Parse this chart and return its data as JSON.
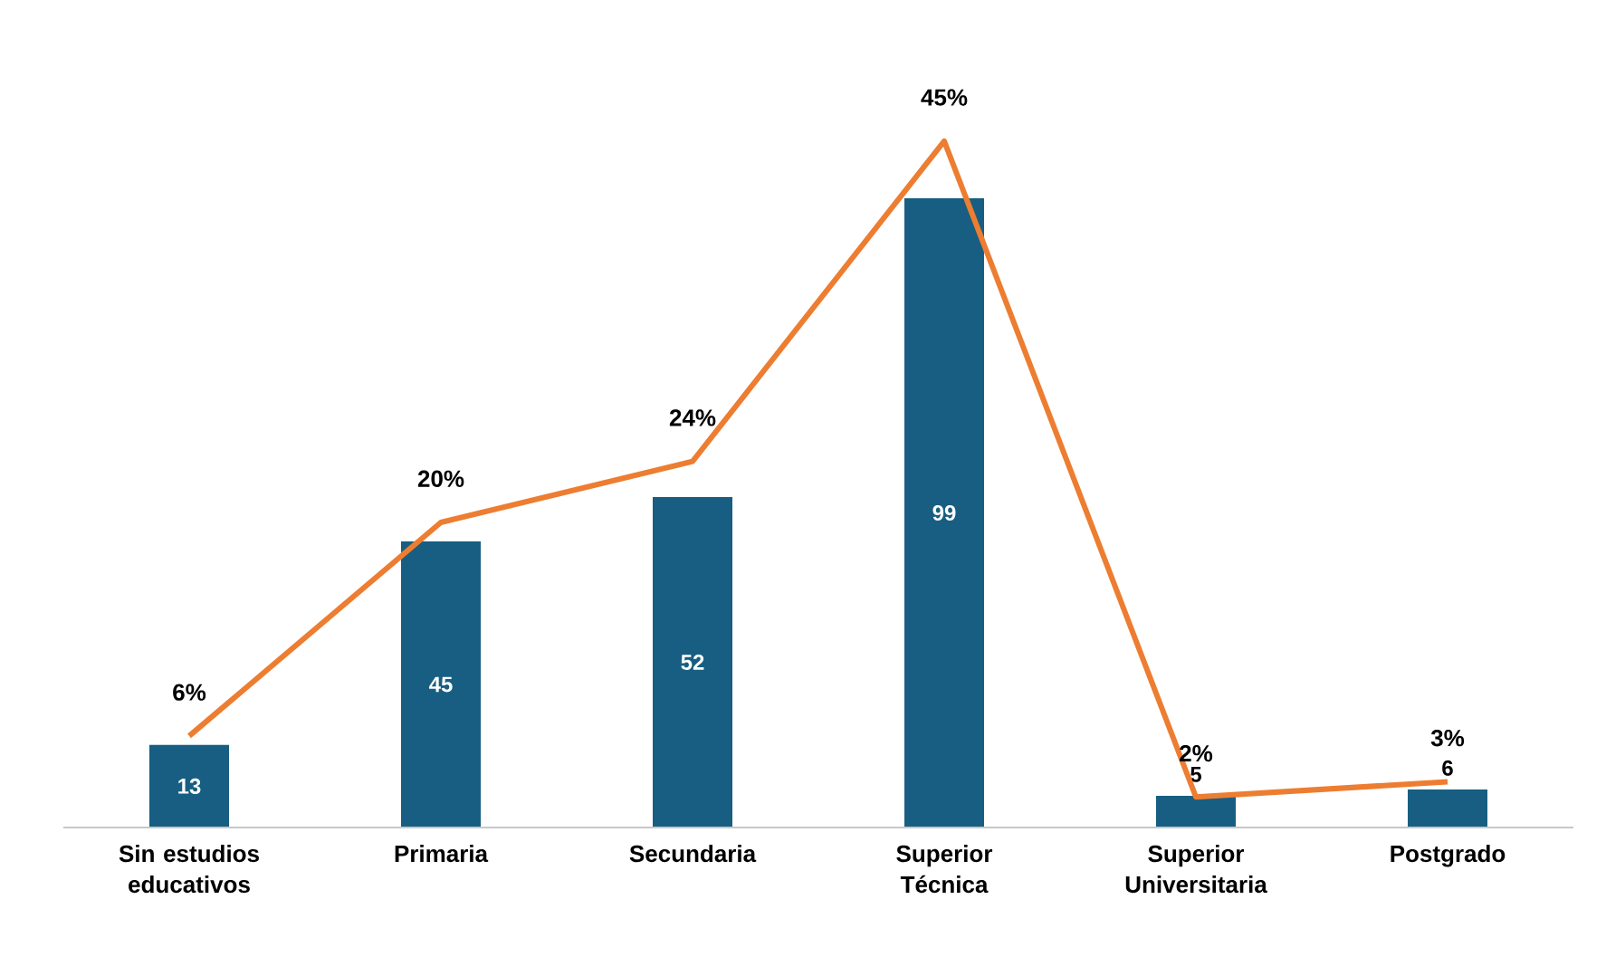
{
  "chart_data": {
    "type": "bar",
    "categories": [
      "Sin estudios educativos",
      "Primaria",
      "Secundaria",
      "Superior Técnica",
      "Superior Universitaria",
      "Postgrado"
    ],
    "series": [
      {
        "color": "#175e82",
        "values": [
          13,
          45,
          52,
          99,
          5,
          6
        ],
        "value_labels": [
          "13",
          "45",
          "52",
          "99",
          "5",
          "6"
        ]
      },
      {
        "type": "line",
        "axis": "y2",
        "color": "#ed7d31",
        "values": [
          6,
          20,
          24,
          45,
          2,
          3
        ],
        "value_labels": [
          "6%",
          "20%",
          "24%",
          "45%",
          "2%",
          "3%"
        ],
        "marker": "none",
        "line_style": "solid"
      }
    ],
    "tick_labels": "x"
  }
}
